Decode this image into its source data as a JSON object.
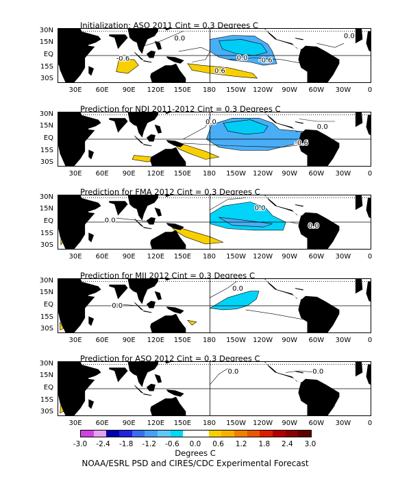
{
  "panels": [
    {
      "title": "Initialization: ASO 2011  Cint = 0.3 Degrees C",
      "contour_labels": [
        "0.0",
        "0.0",
        "-0.6",
        "0.0",
        "-0.6",
        "0.6"
      ]
    },
    {
      "title": "Prediction for NDJ 2011-2012  Cint = 0.3 Degrees C",
      "contour_labels": [
        "0.0",
        "0.0",
        "-0.6"
      ]
    },
    {
      "title": "Prediction for FMA 2012  Cint = 0.3 Degrees C",
      "contour_labels": [
        "0.0",
        "0.0",
        "0.0"
      ]
    },
    {
      "title": "Prediction for MJJ 2012  Cint = 0.3 Degrees C",
      "contour_labels": [
        "0.0",
        "0.0"
      ]
    },
    {
      "title": "Prediction for ASO 2012  Cint = 0.3 Degrees C",
      "contour_labels": [
        "0.0",
        "0.0"
      ]
    }
  ],
  "lat_labels": [
    "30N",
    "15N",
    "EQ",
    "15S",
    "30S"
  ],
  "lon_labels": [
    "30E",
    "60E",
    "90E",
    "120E",
    "150E",
    "180",
    "150W",
    "120W",
    "90W",
    "60W",
    "30W",
    "0"
  ],
  "colorbar": {
    "ticks": [
      "-3.0",
      "-2.4",
      "-1.8",
      "-1.2",
      "-0.6",
      "0.0",
      "0.6",
      "1.2",
      "1.8",
      "2.4",
      "3.0"
    ],
    "colors": [
      "#cc44dd",
      "#e6a0f0",
      "#0000aa",
      "#2222dd",
      "#3a6ef0",
      "#4a9ef6",
      "#60c8f8",
      "#00d8f8",
      "#ffffff",
      "#ffffff",
      "#f8d000",
      "#f8b000",
      "#f08000",
      "#e85800",
      "#d82000",
      "#b00000",
      "#8a0000",
      "#600000"
    ],
    "units": "Degrees C"
  },
  "credit": "NOAA/ESRL PSD and CIRES/CDC Experimental Forecast"
}
